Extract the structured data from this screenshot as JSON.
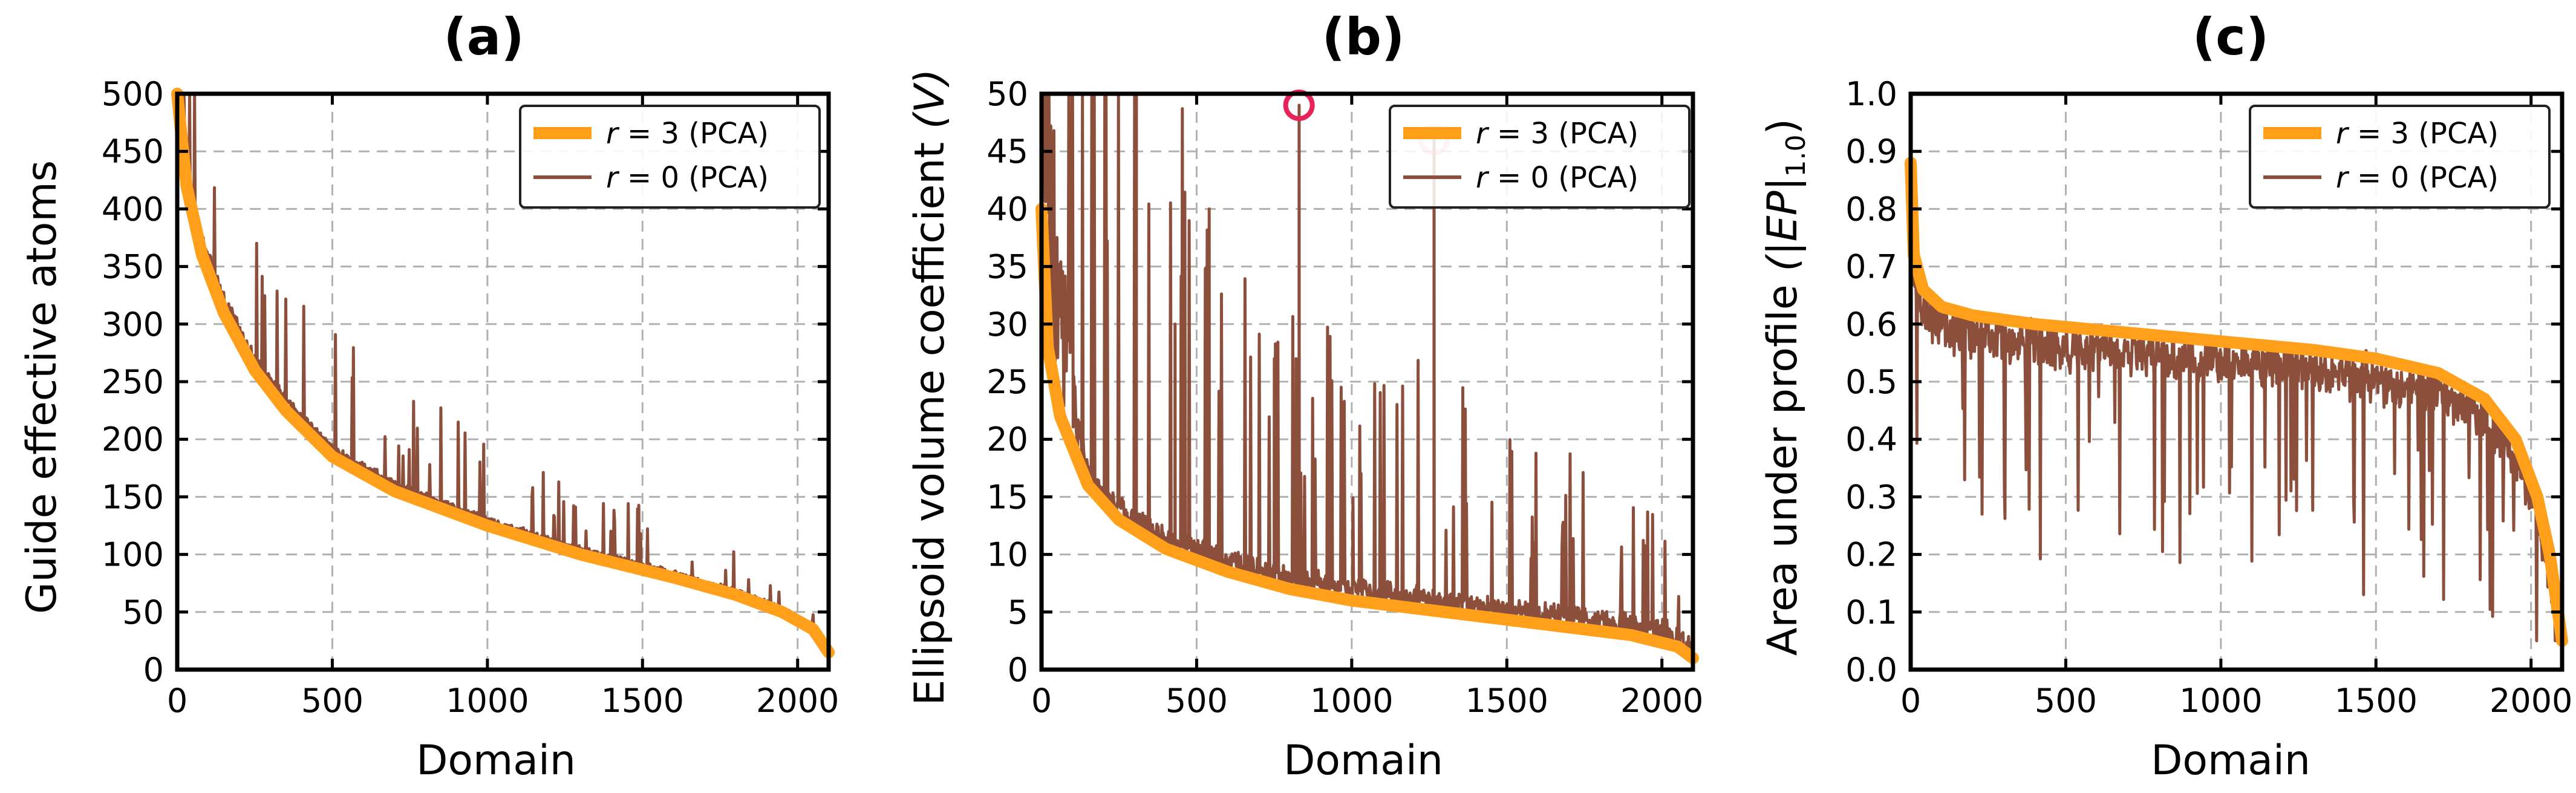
{
  "colors": {
    "pca3": "#ff9f1a",
    "pca0": "#8c4f3c",
    "outlier": "#e8235a",
    "grid": "#b0b0b0"
  },
  "legend": {
    "r3_var": "r",
    "r3_rest": " = 3 (PCA)",
    "r0_var": "r",
    "r0_rest": " = 0 (PCA)"
  },
  "chart_data": [
    {
      "id": "a",
      "type": "line",
      "title": "(a)",
      "xlabel": "Domain",
      "ylabel": "Guide effective atoms",
      "xlim": [
        0,
        2100
      ],
      "ylim": [
        0,
        500
      ],
      "xticks": [
        0,
        500,
        1000,
        1500,
        2000
      ],
      "yticks": [
        0,
        50,
        100,
        150,
        200,
        250,
        300,
        350,
        400,
        450,
        500
      ],
      "yticklabels": [
        "0",
        "50",
        "100",
        "150",
        "200",
        "250",
        "300",
        "350",
        "400",
        "450",
        "500"
      ],
      "grid": true,
      "legend": "top-right",
      "n_domains": 2100,
      "series": [
        {
          "name": "r = 3 (PCA)",
          "style": "thick",
          "x": [
            0,
            30,
            80,
            150,
            250,
            350,
            500,
            700,
            1000,
            1300,
            1600,
            1800,
            1950,
            2050,
            2100
          ],
          "y": [
            500,
            420,
            360,
            310,
            260,
            225,
            185,
            155,
            125,
            100,
            80,
            65,
            50,
            35,
            15
          ]
        },
        {
          "name": "r = 0 (PCA)",
          "style": "noisy",
          "seed": 11,
          "noise": 0.16,
          "skew": 0.85,
          "spikes": 45,
          "spike_max": 0.6,
          "floor": 10,
          "max": 500
        }
      ]
    },
    {
      "id": "b",
      "type": "line",
      "title": "(b)",
      "xlabel": "Domain",
      "ylabel": "Ellipsoid volume coefficient",
      "ylabel_var": "(V)",
      "xlim": [
        0,
        2100
      ],
      "ylim": [
        0,
        50
      ],
      "xticks": [
        0,
        500,
        1000,
        1500,
        2000
      ],
      "yticks": [
        0,
        5,
        10,
        15,
        20,
        25,
        30,
        35,
        40,
        45,
        50
      ],
      "yticklabels": [
        "0",
        "5",
        "10",
        "15",
        "20",
        "25",
        "30",
        "35",
        "40",
        "45",
        "50"
      ],
      "grid": true,
      "legend": "top-right",
      "n_domains": 2100,
      "series": [
        {
          "name": "r = 3 (PCA)",
          "style": "thick",
          "x": [
            0,
            20,
            60,
            150,
            250,
            400,
            600,
            800,
            1000,
            1300,
            1600,
            1900,
            2050,
            2100
          ],
          "y": [
            40,
            28,
            22,
            16,
            13,
            10.5,
            8.5,
            7,
            6,
            5,
            4,
            3,
            2,
            1
          ]
        },
        {
          "name": "r = 0 (PCA)",
          "style": "noisy",
          "seed": 23,
          "noise": 1.1,
          "skew": 0.9,
          "spikes": 70,
          "spike_max": 2.0,
          "floor": 0.5,
          "max": 50,
          "head_boost": 150
        }
      ],
      "extra_spikes": [
        {
          "x": 830,
          "y": 49
        },
        {
          "x": 1265,
          "y": 46
        },
        {
          "x": 305,
          "y": 44
        },
        {
          "x": 540,
          "y": 40
        },
        {
          "x": 750,
          "y": 27
        },
        {
          "x": 820,
          "y": 27
        },
        {
          "x": 430,
          "y": 30
        }
      ],
      "outliers": [
        {
          "x": 830,
          "y": 49,
          "alpha": 1.0
        },
        {
          "x": 1265,
          "y": 46,
          "alpha": 0.35
        }
      ]
    },
    {
      "id": "c",
      "type": "line",
      "title": "(c)",
      "xlabel": "Domain",
      "ylabel": "Area under profile",
      "ylabel_var": "(|EP|",
      "ylabel_sub": "1.0",
      "ylabel_close": ")",
      "xlim": [
        0,
        2100
      ],
      "ylim": [
        0,
        1.0
      ],
      "xticks": [
        0,
        500,
        1000,
        1500,
        2000
      ],
      "yticks": [
        0,
        0.1,
        0.2,
        0.3,
        0.4,
        0.5,
        0.6,
        0.7,
        0.8,
        0.9,
        1.0
      ],
      "yticklabels": [
        "0.0",
        "0.1",
        "0.2",
        "0.3",
        "0.4",
        "0.5",
        "0.6",
        "0.7",
        "0.8",
        "0.9",
        "1.0"
      ],
      "grid": true,
      "legend": "top-right",
      "n_domains": 2100,
      "series": [
        {
          "name": "r = 3 (PCA)",
          "style": "thick",
          "x": [
            0,
            10,
            40,
            100,
            200,
            400,
            700,
            1000,
            1300,
            1500,
            1700,
            1850,
            1950,
            2020,
            2060,
            2100
          ],
          "y": [
            0.88,
            0.72,
            0.66,
            0.63,
            0.615,
            0.6,
            0.585,
            0.57,
            0.555,
            0.54,
            0.515,
            0.47,
            0.4,
            0.3,
            0.2,
            0.05
          ]
        },
        {
          "name": "r = 0 (PCA)",
          "style": "noisy",
          "seed": 37,
          "noise": 0.04,
          "skew": -0.95,
          "spikes": 60,
          "spike_max": -0.35,
          "floor": 0.05,
          "max": 1.0
        }
      ]
    }
  ]
}
